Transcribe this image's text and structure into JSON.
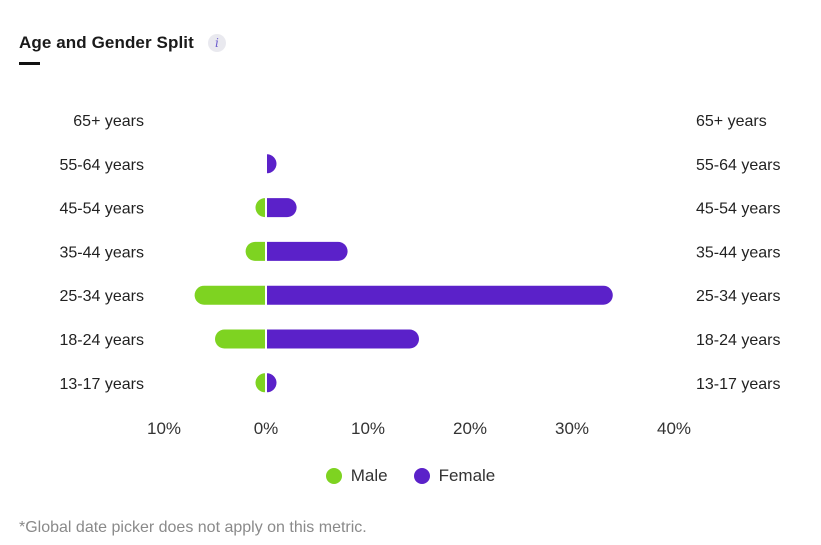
{
  "header": {
    "title": "Age and Gender Split",
    "info_glyph": "i"
  },
  "chart_data": {
    "type": "bar",
    "orientation": "horizontal-diverging",
    "categories": [
      "65+ years",
      "55-64 years",
      "45-54 years",
      "35-44 years",
      "25-34 years",
      "18-24 years",
      "13-17 years"
    ],
    "series": [
      {
        "name": "Male",
        "color": "#7ed321",
        "values": [
          0,
          0,
          1,
          2,
          7,
          5,
          1
        ]
      },
      {
        "name": "Female",
        "color": "#5b21c9",
        "values": [
          0,
          1,
          3,
          8,
          34,
          15,
          1
        ]
      }
    ],
    "x_ticks": [
      {
        "label": "10%",
        "value": -10
      },
      {
        "label": "0%",
        "value": 0
      },
      {
        "label": "10%",
        "value": 10
      },
      {
        "label": "20%",
        "value": 20
      },
      {
        "label": "30%",
        "value": 30
      },
      {
        "label": "40%",
        "value": 40
      }
    ],
    "xlim": [
      -10,
      40
    ],
    "grid": false,
    "legend": "bottom-center"
  },
  "footnote": "*Global date picker does not apply on this metric."
}
